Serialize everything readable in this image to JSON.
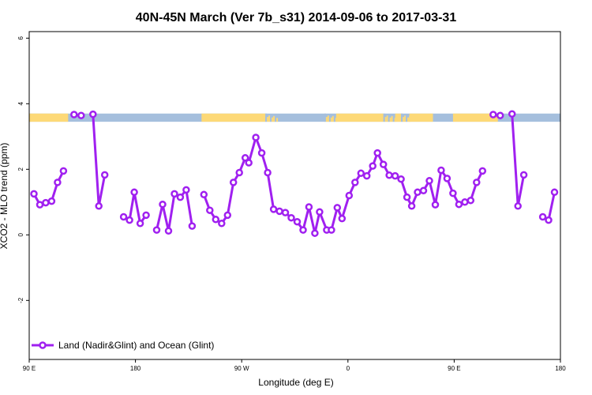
{
  "chart_data": {
    "type": "line",
    "title": "40N-45N March (Ver 7b_s31)   2014-09-06 to 2017-03-31",
    "xlabel": "Longitude (deg E)",
    "ylabel": "XCO2 - MLO trend (ppm)",
    "xlim": [
      90,
      540
    ],
    "ylim": [
      -3.8,
      6.2
    ],
    "x_ticks": [
      {
        "value": 90,
        "label": "90 E"
      },
      {
        "value": 180,
        "label": "180"
      },
      {
        "value": 270,
        "label": "90 W"
      },
      {
        "value": 360,
        "label": "0"
      },
      {
        "value": 450,
        "label": "90 E"
      },
      {
        "value": 540,
        "label": "180"
      }
    ],
    "y_ticks": [
      {
        "value": -2,
        "label": "-2"
      },
      {
        "value": 0,
        "label": "0"
      },
      {
        "value": 2,
        "label": "2"
      },
      {
        "value": 4,
        "label": "4"
      },
      {
        "value": 6,
        "label": "6"
      }
    ],
    "grid": false,
    "legend_position": "bottom-left",
    "series": [
      {
        "name": "Land (Nadir&Glint) and Ocean (Glint)",
        "color": "#a020f0",
        "segments": [
          [
            [
              94,
              1.25
            ],
            [
              99,
              0.92
            ],
            [
              104,
              0.98
            ],
            [
              109,
              1.03
            ],
            [
              114,
              1.6
            ],
            [
              119,
              1.95
            ]
          ],
          [
            [
              128,
              3.67
            ],
            [
              134,
              3.64
            ]
          ],
          [
            [
              144,
              3.68
            ],
            [
              149,
              0.88
            ],
            [
              154,
              1.83
            ]
          ],
          [
            [
              170,
              0.55
            ],
            [
              175,
              0.45
            ],
            [
              179,
              1.3
            ],
            [
              184,
              0.35
            ],
            [
              189,
              0.6
            ]
          ],
          [
            [
              198,
              0.15
            ],
            [
              203,
              0.93
            ],
            [
              208,
              0.12
            ],
            [
              213,
              1.25
            ],
            [
              218,
              1.15
            ],
            [
              223,
              1.37
            ],
            [
              228,
              0.27
            ]
          ],
          [
            [
              238,
              1.23
            ],
            [
              243,
              0.75
            ],
            [
              248,
              0.47
            ],
            [
              253,
              0.35
            ],
            [
              258,
              0.6
            ],
            [
              263,
              1.6
            ],
            [
              268,
              1.9
            ],
            [
              273,
              2.35
            ],
            [
              276,
              2.2
            ],
            [
              282,
              2.97
            ],
            [
              287,
              2.5
            ],
            [
              292,
              1.9
            ],
            [
              297,
              0.78
            ],
            [
              302,
              0.72
            ],
            [
              307,
              0.68
            ],
            [
              312,
              0.52
            ],
            [
              317,
              0.4
            ],
            [
              322,
              0.15
            ],
            [
              327,
              0.85
            ],
            [
              332,
              0.05
            ],
            [
              336,
              0.7
            ],
            [
              342,
              0.15
            ],
            [
              346,
              0.15
            ],
            [
              351,
              0.83
            ],
            [
              355,
              0.5
            ],
            [
              361,
              1.2
            ],
            [
              366,
              1.6
            ],
            [
              371,
              1.88
            ],
            [
              376,
              1.8
            ],
            [
              381,
              2.1
            ],
            [
              385,
              2.5
            ],
            [
              390,
              2.15
            ],
            [
              395,
              1.82
            ],
            [
              400,
              1.8
            ],
            [
              405,
              1.7
            ],
            [
              410,
              1.15
            ],
            [
              414,
              0.88
            ],
            [
              419,
              1.3
            ],
            [
              424,
              1.35
            ],
            [
              429,
              1.65
            ],
            [
              434,
              0.92
            ],
            [
              439,
              1.97
            ],
            [
              444,
              1.72
            ],
            [
              449,
              1.27
            ],
            [
              454,
              0.93
            ],
            [
              459,
              1.0
            ],
            [
              464,
              1.05
            ],
            [
              469,
              1.6
            ],
            [
              474,
              1.95
            ]
          ],
          [
            [
              483,
              3.67
            ],
            [
              489,
              3.64
            ]
          ],
          [
            [
              499,
              3.69
            ],
            [
              504,
              0.88
            ],
            [
              509,
              1.83
            ]
          ],
          [
            [
              525,
              0.55
            ],
            [
              530,
              0.45
            ],
            [
              535,
              1.3
            ]
          ]
        ]
      }
    ],
    "surface_band": {
      "y_range": [
        3.45,
        3.7
      ],
      "land_color": "#fdd977",
      "ocean_color": "#a5bfdd",
      "land_spans": [
        [
          90,
          123
        ],
        [
          236,
          290
        ],
        [
          350,
          390
        ],
        [
          400,
          405
        ],
        [
          412,
          432
        ],
        [
          449,
          487
        ]
      ],
      "coast_mix_spans": [
        [
          290,
          300
        ],
        [
          340,
          350
        ],
        [
          390,
          400
        ],
        [
          405,
          412
        ]
      ]
    }
  }
}
